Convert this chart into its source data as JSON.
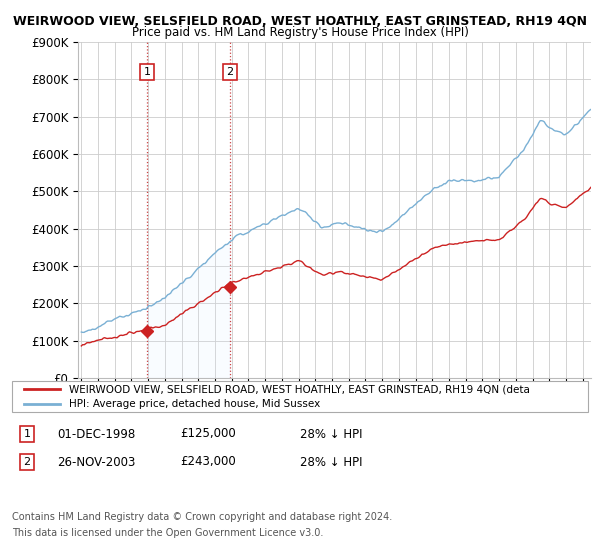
{
  "title": "WEIRWOOD VIEW, SELSFIELD ROAD, WEST HOATHLY, EAST GRINSTEAD, RH19 4QN",
  "subtitle": "Price paid vs. HM Land Registry's House Price Index (HPI)",
  "legend_line1": "WEIRWOOD VIEW, SELSFIELD ROAD, WEST HOATHLY, EAST GRINSTEAD, RH19 4QN (deta",
  "legend_line2": "HPI: Average price, detached house, Mid Sussex",
  "annotation1_label": "1",
  "annotation1_date": "01-DEC-1998",
  "annotation1_price": "£125,000",
  "annotation1_hpi": "28% ↓ HPI",
  "annotation2_label": "2",
  "annotation2_date": "26-NOV-2003",
  "annotation2_price": "£243,000",
  "annotation2_hpi": "28% ↓ HPI",
  "footnote1": "Contains HM Land Registry data © Crown copyright and database right 2024.",
  "footnote2": "This data is licensed under the Open Government Licence v3.0.",
  "sale1_x": 1998.92,
  "sale1_y": 125000,
  "sale2_x": 2003.9,
  "sale2_y": 243000,
  "ylim": [
    0,
    900000
  ],
  "xlim_start": 1994.8,
  "xlim_end": 2025.5,
  "hpi_color": "#7ab0d4",
  "price_color": "#cc2222",
  "background_color": "#ffffff",
  "plot_bg_color": "#ffffff",
  "grid_color": "#cccccc",
  "shade_color": "#ddeeff",
  "vline_color": "#cc4444",
  "title_fontsize": 9.0,
  "subtitle_fontsize": 8.5
}
